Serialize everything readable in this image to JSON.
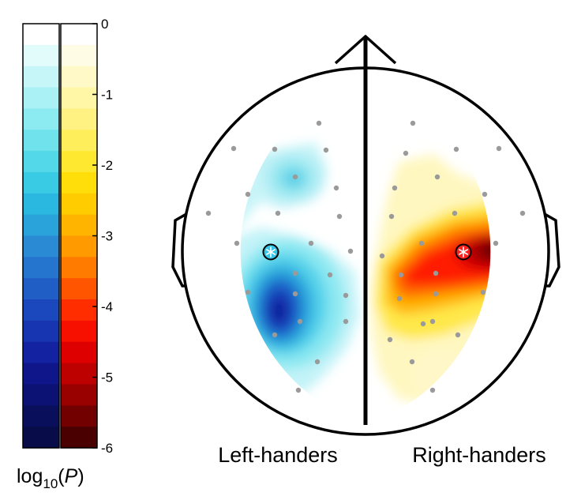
{
  "colorbar": {
    "ticks": [
      "0",
      "-1",
      "-2",
      "-3",
      "-4",
      "-5",
      "-6"
    ],
    "tick_values": [
      0,
      -1,
      -2,
      -3,
      -4,
      -5,
      -6
    ],
    "range": [
      -6,
      0
    ],
    "title_base": "log",
    "title_sub": "10",
    "title_open": "(",
    "title_var": "P",
    "title_close": ")",
    "blue_colors": [
      "#ffffff",
      "#e2fbfb",
      "#c6f6f8",
      "#a9f1f5",
      "#8ceaf1",
      "#6fe2ec",
      "#52d8e8",
      "#39cbe4",
      "#2ab8e0",
      "#2aa2da",
      "#2a8bd4",
      "#2574ce",
      "#205ec6",
      "#1b48bd",
      "#1734b1",
      "#1222a0",
      "#0e168a",
      "#0c1273",
      "#0a0f5c",
      "#080c48"
    ],
    "yellow_colors": [
      "#ffffff",
      "#fffce6",
      "#fff9c8",
      "#fff6a6",
      "#fff283",
      "#ffee5c",
      "#ffe930",
      "#ffde0a",
      "#ffcc00",
      "#ffb400",
      "#ff9a00",
      "#ff7b00",
      "#ff5500",
      "#ff2d00",
      "#f70f00",
      "#de0000",
      "#bd0000",
      "#990000",
      "#720000",
      "#4a0000"
    ]
  },
  "labels": {
    "left": "Left-handers",
    "right": "Right-handers"
  },
  "highlight": {
    "left_marker": "cyan-asterisk-circle",
    "right_marker": "red-asterisk-circle",
    "left_color": "#35c6e8",
    "right_color": "#ff2020"
  }
}
